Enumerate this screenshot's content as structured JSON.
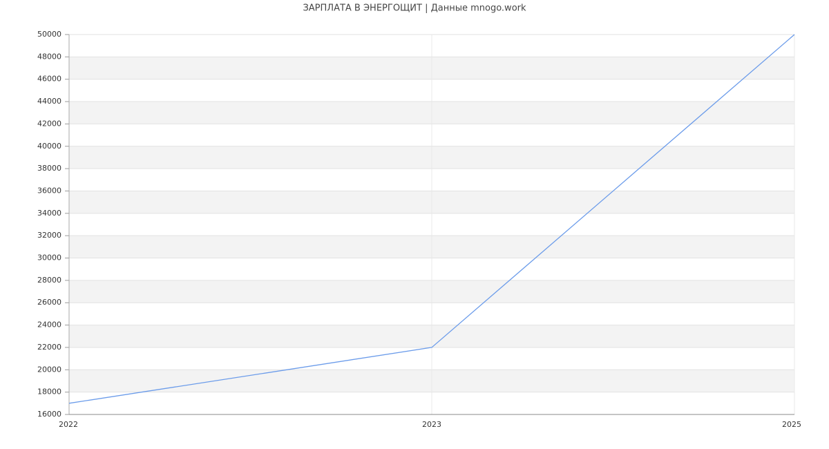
{
  "chart_data": {
    "type": "line",
    "title": "ЗАРПЛАТА В ЭНЕРГОЩИТ | Данные mnogo.work",
    "categories": [
      "2022",
      "2023",
      "2025"
    ],
    "values": [
      17000,
      22000,
      50000
    ],
    "color": "#6a9bea",
    "ylim": [
      16000,
      50000
    ],
    "yticks": [
      16000,
      18000,
      20000,
      22000,
      24000,
      26000,
      28000,
      30000,
      32000,
      34000,
      36000,
      38000,
      40000,
      42000,
      44000,
      46000,
      48000,
      50000
    ],
    "grid": true
  }
}
